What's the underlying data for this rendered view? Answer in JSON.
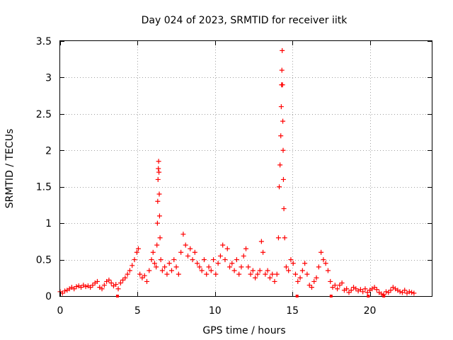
{
  "chart_data": {
    "type": "scatter",
    "title": "Day 024 of 2023, SRMTID for receiver iitk",
    "xlabel": "GPS time / hours",
    "ylabel": "SRMTID / TECUs",
    "xlim": [
      0,
      24
    ],
    "ylim": [
      0,
      3.5
    ],
    "xticks": [
      0,
      5,
      10,
      15,
      20
    ],
    "xtick_labels": [
      "0",
      "5",
      "10",
      "15",
      "20"
    ],
    "yticks": [
      0,
      0.5,
      1,
      1.5,
      2,
      2.5,
      3,
      3.5
    ],
    "ytick_labels": [
      "0",
      "0.5",
      "1",
      "1.5",
      "2",
      "2.5",
      "3",
      "3.5"
    ],
    "grid": true,
    "marker": "+",
    "color": "#ff0000",
    "series": [
      {
        "name": "SRMTID",
        "points": [
          [
            0.0,
            0.06
          ],
          [
            0.15,
            0.04
          ],
          [
            0.3,
            0.07
          ],
          [
            0.45,
            0.08
          ],
          [
            0.6,
            0.1
          ],
          [
            0.75,
            0.12
          ],
          [
            0.9,
            0.1
          ],
          [
            1.05,
            0.13
          ],
          [
            1.2,
            0.14
          ],
          [
            1.35,
            0.12
          ],
          [
            1.5,
            0.15
          ],
          [
            1.65,
            0.13
          ],
          [
            1.8,
            0.14
          ],
          [
            1.95,
            0.12
          ],
          [
            2.1,
            0.15
          ],
          [
            2.25,
            0.18
          ],
          [
            2.4,
            0.2
          ],
          [
            2.55,
            0.12
          ],
          [
            2.7,
            0.1
          ],
          [
            2.85,
            0.15
          ],
          [
            3.0,
            0.2
          ],
          [
            3.15,
            0.22
          ],
          [
            3.3,
            0.18
          ],
          [
            3.45,
            0.14
          ],
          [
            3.6,
            0.16
          ],
          [
            3.75,
            0.1
          ],
          [
            3.9,
            0.18
          ],
          [
            4.05,
            0.22
          ],
          [
            4.2,
            0.25
          ],
          [
            4.35,
            0.3
          ],
          [
            4.5,
            0.35
          ],
          [
            4.65,
            0.42
          ],
          [
            4.8,
            0.5
          ],
          [
            4.95,
            0.6
          ],
          [
            5.05,
            0.65
          ],
          [
            5.15,
            0.3
          ],
          [
            5.3,
            0.25
          ],
          [
            5.45,
            0.28
          ],
          [
            5.6,
            0.2
          ],
          [
            5.75,
            0.35
          ],
          [
            5.9,
            0.5
          ],
          [
            6.0,
            0.6
          ],
          [
            6.1,
            0.45
          ],
          [
            6.2,
            0.4
          ],
          [
            6.25,
            0.7
          ],
          [
            6.28,
            1.0
          ],
          [
            6.3,
            1.3
          ],
          [
            6.32,
            1.6
          ],
          [
            6.34,
            1.75
          ],
          [
            6.36,
            1.85
          ],
          [
            6.38,
            1.7
          ],
          [
            6.4,
            1.4
          ],
          [
            6.42,
            1.1
          ],
          [
            6.45,
            0.8
          ],
          [
            6.5,
            0.5
          ],
          [
            6.6,
            0.35
          ],
          [
            6.75,
            0.4
          ],
          [
            6.9,
            0.3
          ],
          [
            7.05,
            0.45
          ],
          [
            7.2,
            0.35
          ],
          [
            7.35,
            0.5
          ],
          [
            7.5,
            0.4
          ],
          [
            7.65,
            0.3
          ],
          [
            7.8,
            0.6
          ],
          [
            7.95,
            0.85
          ],
          [
            8.1,
            0.7
          ],
          [
            8.25,
            0.55
          ],
          [
            8.4,
            0.65
          ],
          [
            8.55,
            0.5
          ],
          [
            8.7,
            0.6
          ],
          [
            8.85,
            0.45
          ],
          [
            9.0,
            0.4
          ],
          [
            9.15,
            0.35
          ],
          [
            9.3,
            0.5
          ],
          [
            9.45,
            0.3
          ],
          [
            9.6,
            0.4
          ],
          [
            9.75,
            0.35
          ],
          [
            9.9,
            0.5
          ],
          [
            10.05,
            0.3
          ],
          [
            10.2,
            0.45
          ],
          [
            10.35,
            0.55
          ],
          [
            10.5,
            0.7
          ],
          [
            10.65,
            0.5
          ],
          [
            10.8,
            0.65
          ],
          [
            10.95,
            0.4
          ],
          [
            11.1,
            0.45
          ],
          [
            11.25,
            0.35
          ],
          [
            11.4,
            0.5
          ],
          [
            11.55,
            0.3
          ],
          [
            11.7,
            0.4
          ],
          [
            11.85,
            0.55
          ],
          [
            12.0,
            0.65
          ],
          [
            12.15,
            0.4
          ],
          [
            12.3,
            0.3
          ],
          [
            12.45,
            0.35
          ],
          [
            12.6,
            0.25
          ],
          [
            12.75,
            0.3
          ],
          [
            12.9,
            0.35
          ],
          [
            13.0,
            0.75
          ],
          [
            13.1,
            0.6
          ],
          [
            13.25,
            0.3
          ],
          [
            13.4,
            0.35
          ],
          [
            13.55,
            0.25
          ],
          [
            13.7,
            0.3
          ],
          [
            13.85,
            0.2
          ],
          [
            14.0,
            0.3
          ],
          [
            14.1,
            0.8
          ],
          [
            14.15,
            1.5
          ],
          [
            14.2,
            1.8
          ],
          [
            14.25,
            2.2
          ],
          [
            14.28,
            2.6
          ],
          [
            14.3,
            2.9
          ],
          [
            14.32,
            3.1
          ],
          [
            14.34,
            3.37
          ],
          [
            14.36,
            2.9
          ],
          [
            14.38,
            2.4
          ],
          [
            14.4,
            2.0
          ],
          [
            14.42,
            1.6
          ],
          [
            14.45,
            1.2
          ],
          [
            14.5,
            0.8
          ],
          [
            14.6,
            0.4
          ],
          [
            14.75,
            0.35
          ],
          [
            14.9,
            0.5
          ],
          [
            15.05,
            0.45
          ],
          [
            15.2,
            0.3
          ],
          [
            15.35,
            0.2
          ],
          [
            15.5,
            0.25
          ],
          [
            15.65,
            0.35
          ],
          [
            15.8,
            0.45
          ],
          [
            15.95,
            0.3
          ],
          [
            16.1,
            0.15
          ],
          [
            16.25,
            0.12
          ],
          [
            16.4,
            0.2
          ],
          [
            16.55,
            0.25
          ],
          [
            16.7,
            0.4
          ],
          [
            16.85,
            0.6
          ],
          [
            17.0,
            0.5
          ],
          [
            17.15,
            0.45
          ],
          [
            17.3,
            0.35
          ],
          [
            17.45,
            0.2
          ],
          [
            17.6,
            0.12
          ],
          [
            17.75,
            0.15
          ],
          [
            17.9,
            0.1
          ],
          [
            18.05,
            0.15
          ],
          [
            18.2,
            0.18
          ],
          [
            18.35,
            0.08
          ],
          [
            18.5,
            0.1
          ],
          [
            18.65,
            0.05
          ],
          [
            18.8,
            0.08
          ],
          [
            18.95,
            0.12
          ],
          [
            19.1,
            0.1
          ],
          [
            19.25,
            0.07
          ],
          [
            19.4,
            0.09
          ],
          [
            19.55,
            0.06
          ],
          [
            19.7,
            0.1
          ],
          [
            19.85,
            0.05
          ],
          [
            20.0,
            0.08
          ],
          [
            20.15,
            0.1
          ],
          [
            20.3,
            0.12
          ],
          [
            20.45,
            0.09
          ],
          [
            20.6,
            0.05
          ],
          [
            20.75,
            0.03
          ],
          [
            20.9,
            0.02
          ],
          [
            21.05,
            0.06
          ],
          [
            21.2,
            0.05
          ],
          [
            21.35,
            0.08
          ],
          [
            21.5,
            0.12
          ],
          [
            21.65,
            0.1
          ],
          [
            21.8,
            0.08
          ],
          [
            21.95,
            0.06
          ],
          [
            22.1,
            0.05
          ],
          [
            22.25,
            0.08
          ],
          [
            22.4,
            0.04
          ],
          [
            22.55,
            0.06
          ],
          [
            22.7,
            0.05
          ],
          [
            22.85,
            0.04
          ]
        ]
      }
    ],
    "axis_markers": [
      3.7,
      15.3,
      17.5,
      19.9,
      20.9
    ]
  }
}
